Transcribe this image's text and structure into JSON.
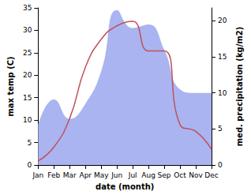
{
  "chart_data": {
    "type": "line",
    "categories": [
      "Jan",
      "Feb",
      "Mar",
      "Apr",
      "May",
      "Jun",
      "Jul",
      "Aug",
      "Sep",
      "Oct",
      "Nov",
      "Dec"
    ],
    "xlabel": "date (month)",
    "ylabel": "max temp (C)",
    "y2label": "med. precipitation (kg/m2)",
    "ylim": [
      0,
      35
    ],
    "yticks": [
      0,
      5,
      10,
      15,
      20,
      25,
      30,
      35
    ],
    "y2lim": [
      0,
      21.8
    ],
    "y2ticks": [
      0,
      5,
      10,
      15,
      20
    ],
    "grid": false,
    "series": [
      {
        "name": "med. precipitation",
        "type": "area",
        "axis": "y2",
        "color": "#aab4f0",
        "values": [
          5.6,
          9.1,
          6.4,
          8.5,
          13,
          21.5,
          19,
          19.5,
          16,
          10.5,
          10,
          10
        ]
      },
      {
        "name": "max temp",
        "type": "line",
        "color": "#c0505c",
        "values": [
          0.9,
          4,
          10.4,
          21.8,
          28,
          31,
          32,
          25.4,
          25.4,
          9,
          7.5,
          3.5
        ]
      }
    ]
  }
}
